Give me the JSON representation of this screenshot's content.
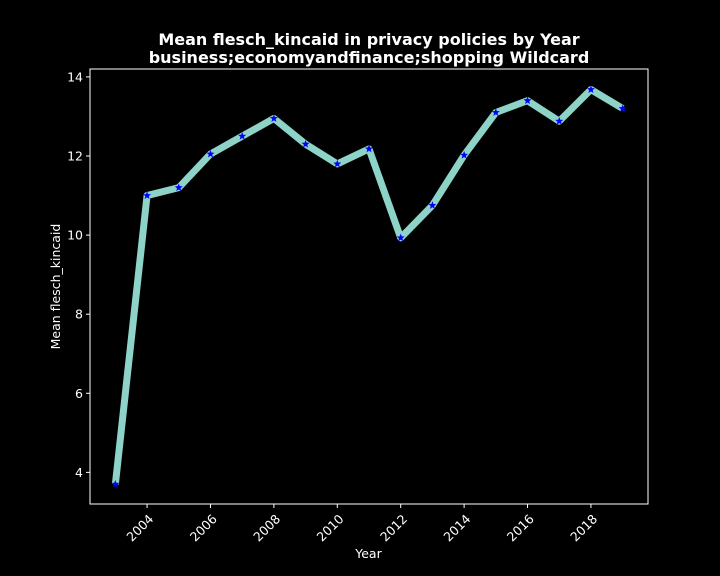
{
  "chart_data": {
    "type": "line",
    "title_line1": "Mean flesch_kincaid in privacy policies by Year",
    "title_line2": "business;economyandfinance;shopping Wildcard",
    "xlabel": "Year",
    "ylabel": "Mean flesch_kincaid",
    "x": [
      2003,
      2004,
      2005,
      2006,
      2007,
      2008,
      2009,
      2010,
      2011,
      2012,
      2013,
      2014,
      2015,
      2016,
      2017,
      2018,
      2019
    ],
    "y": [
      3.7,
      11.0,
      11.2,
      12.05,
      12.5,
      12.95,
      12.3,
      11.8,
      12.18,
      9.93,
      10.75,
      12.02,
      13.1,
      13.4,
      12.88,
      13.68,
      13.2
    ],
    "xlim": [
      2002.2,
      2019.8
    ],
    "ylim": [
      3.2,
      14.2
    ],
    "xticks": [
      2004,
      2006,
      2008,
      2010,
      2012,
      2014,
      2016,
      2018
    ],
    "yticks": [
      4,
      6,
      8,
      10,
      12,
      14
    ],
    "grid": false,
    "line_color": "#8dd3c7",
    "marker": "star",
    "marker_color": "#0000ff",
    "background": "#000000",
    "foreground": "#ffffff"
  }
}
